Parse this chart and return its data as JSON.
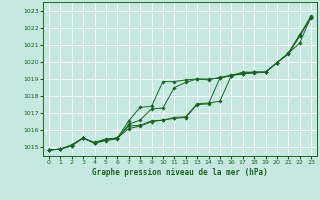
{
  "bg_color": "#c5e8e0",
  "grid_color": "#ffffff",
  "line_color": "#1a6620",
  "xlabel": "Graphe pression niveau de la mer (hPa)",
  "ylim": [
    1014.5,
    1023.5
  ],
  "xlim": [
    -0.5,
    23.5
  ],
  "yticks": [
    1015,
    1016,
    1017,
    1018,
    1019,
    1020,
    1021,
    1022,
    1023
  ],
  "xticks": [
    0,
    1,
    2,
    3,
    4,
    5,
    6,
    7,
    8,
    9,
    10,
    11,
    12,
    13,
    14,
    15,
    16,
    17,
    18,
    19,
    20,
    21,
    22,
    23
  ],
  "line1": [
    1014.85,
    1014.9,
    1015.1,
    1015.55,
    1015.3,
    1015.5,
    1015.55,
    1016.55,
    1017.35,
    1017.4,
    1018.85,
    1018.85,
    1018.95,
    1019.0,
    1019.0,
    1019.05,
    1019.25,
    1019.3,
    1019.35,
    1019.4,
    1019.95,
    1020.5,
    1021.1,
    1022.65
  ],
  "line2": [
    1014.85,
    1014.9,
    1015.1,
    1015.55,
    1015.25,
    1015.4,
    1015.5,
    1016.35,
    1016.6,
    1017.25,
    1017.3,
    1018.5,
    1018.8,
    1019.0,
    1018.95,
    1019.1,
    1019.2,
    1019.3,
    1019.4,
    1019.4,
    1019.95,
    1020.5,
    1021.6,
    1022.55
  ],
  "line3": [
    1014.85,
    1014.9,
    1015.15,
    1015.55,
    1015.25,
    1015.45,
    1015.55,
    1016.25,
    1016.3,
    1016.55,
    1016.6,
    1016.75,
    1016.8,
    1017.55,
    1017.6,
    1017.7,
    1019.2,
    1019.35,
    1019.4,
    1019.4,
    1019.95,
    1020.45,
    1021.5,
    1022.6
  ],
  "line4": [
    1014.85,
    1014.9,
    1015.15,
    1015.55,
    1015.25,
    1015.45,
    1015.55,
    1016.1,
    1016.25,
    1016.5,
    1016.6,
    1016.7,
    1016.75,
    1017.5,
    1017.55,
    1019.05,
    1019.2,
    1019.4,
    1019.4,
    1019.4,
    1019.95,
    1020.5,
    1021.55,
    1022.7
  ]
}
